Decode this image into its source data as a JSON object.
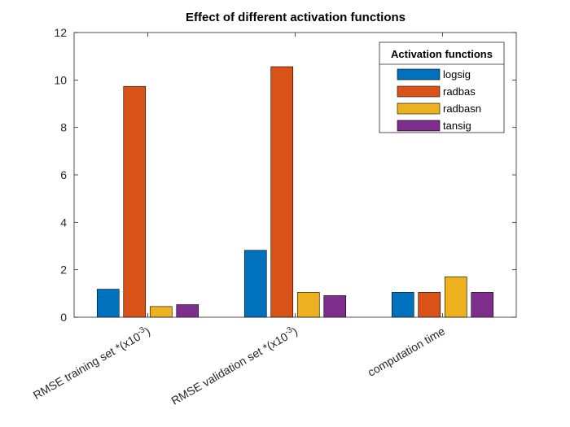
{
  "chart_data": {
    "type": "bar",
    "title": "Effect of different activation functions",
    "categories": [
      {
        "base": "RMSE training set *(x10",
        "sup": "-3",
        "tail": ")"
      },
      {
        "base": "RMSE validation set *(x10",
        "sup": "-3",
        "tail": ")"
      },
      {
        "base": "computation time",
        "sup": "",
        "tail": ""
      }
    ],
    "series": [
      {
        "name": "logsig",
        "color": "#0072BD",
        "values": [
          1.18,
          2.82,
          1.05
        ]
      },
      {
        "name": "radbas",
        "color": "#D95319",
        "values": [
          9.73,
          10.56,
          1.05
        ]
      },
      {
        "name": "radbasn",
        "color": "#EDB120",
        "values": [
          0.45,
          1.05,
          1.7
        ]
      },
      {
        "name": "tansig",
        "color": "#7E2F8E",
        "values": [
          0.53,
          0.91,
          1.05
        ]
      }
    ],
    "ylim": [
      0,
      12
    ],
    "yticks": [
      0,
      2,
      4,
      6,
      8,
      10,
      12
    ],
    "xlabel": "",
    "ylabel": "",
    "grid": false,
    "legend": {
      "title": "Activation functions",
      "position": "top-right"
    }
  }
}
